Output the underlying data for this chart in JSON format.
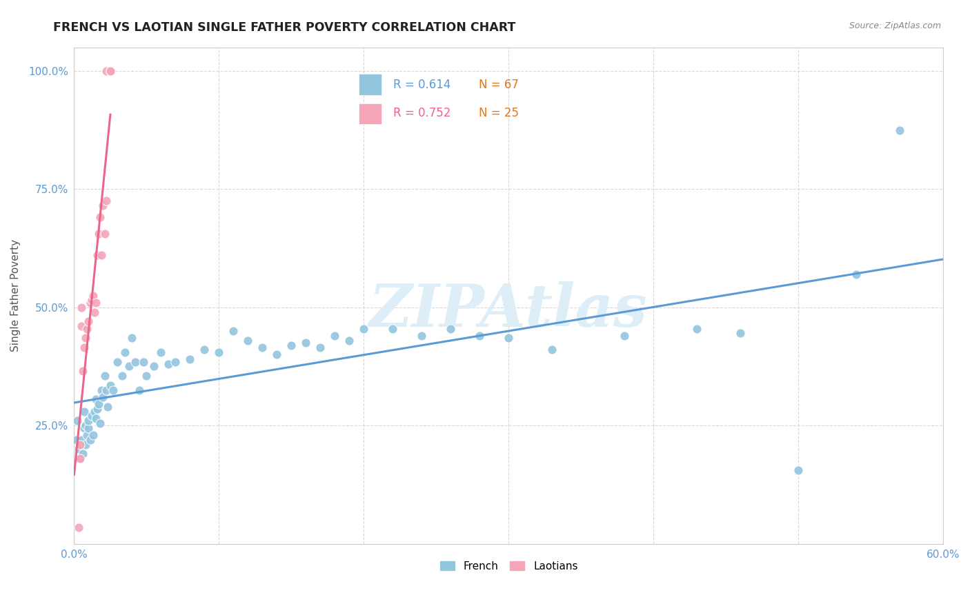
{
  "title": "FRENCH VS LAOTIAN SINGLE FATHER POVERTY CORRELATION CHART",
  "source": "Source: ZipAtlas.com",
  "ylabel": "Single Father Poverty",
  "xlim": [
    0.0,
    0.6
  ],
  "ylim": [
    0.0,
    1.05
  ],
  "xtick_positions": [
    0.0,
    0.1,
    0.2,
    0.3,
    0.4,
    0.5,
    0.6
  ],
  "xtick_labels": [
    "0.0%",
    "",
    "",
    "",
    "",
    "",
    "60.0%"
  ],
  "ytick_positions": [
    0.0,
    0.25,
    0.5,
    0.75,
    1.0
  ],
  "ytick_labels": [
    "",
    "25.0%",
    "50.0%",
    "75.0%",
    "100.0%"
  ],
  "french_color": "#92c5de",
  "laotian_color": "#f4a5b8",
  "french_line_color": "#5b9bd5",
  "laotian_line_color": "#e8668a",
  "watermark": "ZIPAtlas",
  "watermark_color": "#ddeef8",
  "legend_R_french": "0.614",
  "legend_N_french": "67",
  "legend_R_laotian": "0.752",
  "legend_N_laotian": "25",
  "legend_R_color": "#5b9bd5",
  "legend_N_color": "#e07820",
  "legend_R2_color": "#e8668a",
  "tick_color": "#5b9bd5",
  "title_color": "#222222",
  "source_color": "#888888",
  "ylabel_color": "#555555",
  "french_x": [
    0.001,
    0.002,
    0.003,
    0.004,
    0.005,
    0.006,
    0.007,
    0.007,
    0.008,
    0.008,
    0.009,
    0.01,
    0.01,
    0.011,
    0.012,
    0.013,
    0.014,
    0.015,
    0.015,
    0.016,
    0.017,
    0.018,
    0.019,
    0.02,
    0.021,
    0.022,
    0.023,
    0.025,
    0.027,
    0.03,
    0.033,
    0.035,
    0.038,
    0.04,
    0.042,
    0.045,
    0.048,
    0.05,
    0.055,
    0.06,
    0.065,
    0.07,
    0.08,
    0.09,
    0.1,
    0.11,
    0.12,
    0.13,
    0.14,
    0.15,
    0.16,
    0.17,
    0.18,
    0.19,
    0.2,
    0.22,
    0.24,
    0.26,
    0.28,
    0.3,
    0.33,
    0.38,
    0.43,
    0.46,
    0.5,
    0.54,
    0.57
  ],
  "french_y": [
    0.22,
    0.26,
    0.2,
    0.18,
    0.22,
    0.19,
    0.245,
    0.28,
    0.21,
    0.25,
    0.23,
    0.245,
    0.26,
    0.22,
    0.27,
    0.23,
    0.28,
    0.265,
    0.305,
    0.285,
    0.295,
    0.255,
    0.325,
    0.31,
    0.355,
    0.325,
    0.29,
    0.335,
    0.325,
    0.385,
    0.355,
    0.405,
    0.375,
    0.435,
    0.385,
    0.325,
    0.385,
    0.355,
    0.375,
    0.405,
    0.38,
    0.385,
    0.39,
    0.41,
    0.405,
    0.45,
    0.43,
    0.415,
    0.4,
    0.42,
    0.425,
    0.415,
    0.44,
    0.43,
    0.455,
    0.455,
    0.44,
    0.455,
    0.44,
    0.435,
    0.41,
    0.44,
    0.455,
    0.445,
    0.155,
    0.57,
    0.875
  ],
  "laotian_x": [
    0.003,
    0.004,
    0.004,
    0.005,
    0.005,
    0.006,
    0.007,
    0.008,
    0.009,
    0.01,
    0.011,
    0.012,
    0.013,
    0.014,
    0.015,
    0.016,
    0.017,
    0.018,
    0.019,
    0.02,
    0.021,
    0.022,
    0.022,
    0.025,
    0.025
  ],
  "laotian_y": [
    0.035,
    0.18,
    0.21,
    0.46,
    0.5,
    0.365,
    0.415,
    0.435,
    0.455,
    0.47,
    0.51,
    0.515,
    0.525,
    0.49,
    0.51,
    0.61,
    0.655,
    0.69,
    0.61,
    0.715,
    0.655,
    0.725,
    1.0,
    1.0,
    1.0
  ],
  "french_line_x0": 0.0,
  "french_line_x1": 0.6,
  "laotian_line_x0": 0.0,
  "laotian_line_x1": 0.025
}
